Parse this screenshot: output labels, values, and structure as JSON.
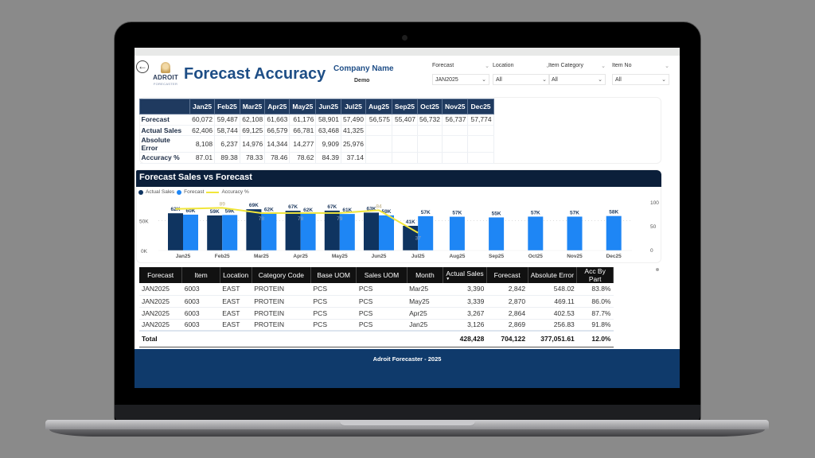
{
  "header": {
    "title": "Forecast Accuracy",
    "logo": {
      "name": "ADROIT",
      "sub": "FORECASTER"
    },
    "company_label": "Company Name",
    "company_value": "Demo",
    "back_icon": "arrow-left-circle-icon"
  },
  "slicers": [
    {
      "label": "Forecast",
      "value": "JAN2025"
    },
    {
      "label": "Location",
      "value": "All"
    },
    {
      "label": "Item Category",
      "value": "All"
    },
    {
      "label": "Item No",
      "value": "All"
    }
  ],
  "summary": {
    "columns": [
      "Jan25",
      "Feb25",
      "Mar25",
      "Apr25",
      "May25",
      "Jun25",
      "Jul25",
      "Aug25",
      "Sep25",
      "Oct25",
      "Nov25",
      "Dec25"
    ],
    "rows": [
      {
        "label": "Forecast",
        "values": [
          "60,072",
          "59,487",
          "62,108",
          "61,663",
          "61,176",
          "58,901",
          "57,490",
          "56,575",
          "55,407",
          "56,732",
          "56,737",
          "57,774"
        ]
      },
      {
        "label": "Actual Sales",
        "values": [
          "62,406",
          "58,744",
          "69,125",
          "66,579",
          "66,781",
          "63,468",
          "41,325",
          "",
          "",
          "",
          "",
          ""
        ]
      },
      {
        "label": "Absolute Error",
        "values": [
          "8,108",
          "6,237",
          "14,976",
          "14,344",
          "14,277",
          "9,909",
          "25,976",
          "",
          "",
          "",
          "",
          ""
        ]
      },
      {
        "label": "Accuracy %",
        "values": [
          "87.01",
          "89.38",
          "78.33",
          "78.46",
          "78.62",
          "84.39",
          "37.14",
          "",
          "",
          "",
          "",
          ""
        ]
      }
    ]
  },
  "chart": {
    "title": "Forecast Sales vs Forecast",
    "legend": [
      {
        "label": "Actual Sales",
        "color": "#0f3460"
      },
      {
        "label": "Forecast",
        "color": "#1e86f5"
      },
      {
        "label": "Accuracy %",
        "color": "#f1e63a"
      }
    ]
  },
  "chart_data": {
    "type": "bar",
    "title": "Forecast Sales vs Forecast",
    "categories": [
      "Jan25",
      "Feb25",
      "Mar25",
      "Apr25",
      "May25",
      "Jun25",
      "Jul25",
      "Aug25",
      "Sep25",
      "Oct25",
      "Nov25",
      "Dec25"
    ],
    "series": [
      {
        "name": "Actual Sales",
        "type": "bar",
        "color": "#0f3460",
        "values": [
          62406,
          58744,
          69125,
          66579,
          66781,
          63468,
          41325,
          null,
          null,
          null,
          null,
          null
        ],
        "labels": [
          "62K",
          "59K",
          "69K",
          "67K",
          "67K",
          "63K",
          "41K",
          "",
          "",
          "",
          "",
          ""
        ]
      },
      {
        "name": "Forecast",
        "type": "bar",
        "color": "#1e86f5",
        "values": [
          60072,
          59487,
          62108,
          61663,
          61176,
          58901,
          57490,
          56575,
          55407,
          56732,
          56737,
          57774
        ],
        "labels": [
          "60K",
          "59K",
          "62K",
          "62K",
          "61K",
          "59K",
          "57K",
          "57K",
          "55K",
          "57K",
          "57K",
          "58K"
        ]
      },
      {
        "name": "Accuracy %",
        "type": "line",
        "axis": "right",
        "color": "#f1e63a",
        "values": [
          87.01,
          89.38,
          78.33,
          78.46,
          78.62,
          84.39,
          37.14,
          null,
          null,
          null,
          null,
          null
        ],
        "labels": [
          "",
          "89",
          "78",
          "78",
          "79",
          "84",
          "37",
          "",
          "",
          "",
          "",
          ""
        ]
      }
    ],
    "left_axis": {
      "ticks": [
        "0K",
        "50K"
      ],
      "range": [
        0,
        80000
      ]
    },
    "right_axis": {
      "ticks": [
        "0",
        "50",
        "100"
      ],
      "range": [
        0,
        100
      ]
    },
    "legend_position": "top-left",
    "grid": true
  },
  "detail": {
    "columns": [
      "Forecast",
      "Item",
      "Location",
      "Category Code",
      "Base UOM",
      "Sales UOM",
      "Month",
      "Actual Sales",
      "Forecast",
      "Absolute Error",
      "Acc By Part"
    ],
    "sorted_column": "Actual Sales",
    "rows": [
      [
        "JAN2025",
        "6003",
        "EAST",
        "PROTEIN",
        "PCS",
        "PCS",
        "Mar25",
        "3,390",
        "2,842",
        "548.02",
        "83.8%"
      ],
      [
        "JAN2025",
        "6003",
        "EAST",
        "PROTEIN",
        "PCS",
        "PCS",
        "May25",
        "3,339",
        "2,870",
        "469.11",
        "86.0%"
      ],
      [
        "JAN2025",
        "6003",
        "EAST",
        "PROTEIN",
        "PCS",
        "PCS",
        "Apr25",
        "3,267",
        "2,864",
        "402.53",
        "87.7%"
      ],
      [
        "JAN2025",
        "6003",
        "EAST",
        "PROTEIN",
        "PCS",
        "PCS",
        "Jan25",
        "3,126",
        "2,869",
        "256.83",
        "91.8%"
      ]
    ],
    "total": {
      "label": "Total",
      "actual_sales": "428,428",
      "forecast": "704,122",
      "absolute_error": "377,051.61",
      "acc_by_part": "12.0%"
    }
  },
  "footer": {
    "text": "Adroit Forecaster - 2025"
  }
}
